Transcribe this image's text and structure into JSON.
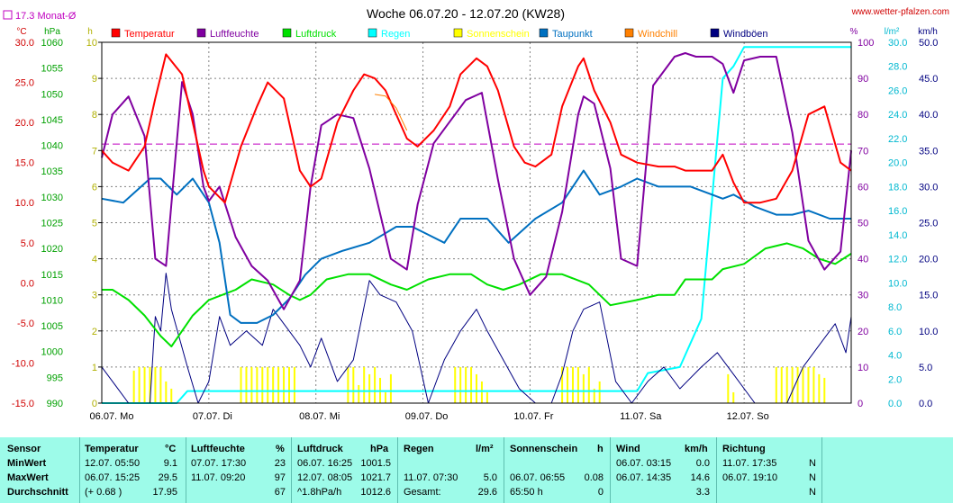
{
  "title": "Woche 06.07.20 - 12.07.20 (KW28)",
  "site": "www.wetter-pfalzen.com",
  "avg_label": "17.3 Monat-Ø",
  "legend": [
    {
      "name": "Temperatur",
      "color": "#ff0000"
    },
    {
      "name": "Luftfeuchte",
      "color": "#8000a0"
    },
    {
      "name": "Luftdruck",
      "color": "#00e000"
    },
    {
      "name": "Regen",
      "color": "#00ffff"
    },
    {
      "name": "Sonnenschein",
      "color": "#ffff00"
    },
    {
      "name": "Taupunkt",
      "color": "#0070c0"
    },
    {
      "name": "Windchill",
      "color": "#ff8000"
    },
    {
      "name": "Windböen",
      "color": "#000080"
    }
  ],
  "chart_data": {
    "type": "line",
    "x_labels": [
      "06.07. Mo",
      "07.07. Di",
      "08.07. Mi",
      "09.07. Do",
      "10.07. Fr",
      "11.07. Sa",
      "12.07. So"
    ],
    "axes": {
      "temp": {
        "unit": "°C",
        "ticks": [
          "30.0",
          "25.0",
          "20.0",
          "15.0",
          "10.0",
          "5.0",
          "0.0",
          "-5.0",
          "-10.0",
          "-15.0"
        ],
        "range": [
          -15,
          30
        ]
      },
      "pressure": {
        "unit": "hPa",
        "ticks": [
          "1060",
          "1055",
          "1050",
          "1045",
          "1040",
          "1035",
          "1030",
          "1025",
          "1020",
          "1015",
          "1010",
          "1005",
          "1000",
          "995",
          "990"
        ],
        "range": [
          990,
          1060
        ]
      },
      "sun": {
        "unit": "h",
        "ticks": [
          "10",
          "9",
          "8",
          "7",
          "6",
          "5",
          "4",
          "3",
          "2",
          "1",
          "0"
        ],
        "range": [
          0,
          10
        ]
      },
      "humidity": {
        "unit": "%",
        "ticks": [
          "100",
          "90",
          "80",
          "70",
          "60",
          "50",
          "40",
          "30",
          "20",
          "10",
          "0"
        ],
        "range": [
          0,
          100
        ]
      },
      "rain": {
        "unit": "l/m²",
        "ticks": [
          "30.0",
          "28.0",
          "26.0",
          "24.0",
          "22.0",
          "20.0",
          "18.0",
          "16.0",
          "14.0",
          "12.0",
          "10.0",
          "8.0",
          "6.0",
          "4.0",
          "2.0",
          "0.0"
        ],
        "range": [
          0,
          30
        ]
      },
      "wind": {
        "unit": "km/h",
        "ticks": [
          "50.0",
          "45.0",
          "40.0",
          "35.0",
          "30.0",
          "25.0",
          "20.0",
          "15.0",
          "10.0",
          "5.0",
          "0.0"
        ],
        "range": [
          0,
          50
        ]
      }
    },
    "monthly_avg_temp": 17.3,
    "series": [
      {
        "name": "Temperatur",
        "axis": "temp",
        "x": [
          0,
          0.1,
          0.25,
          0.4,
          0.5,
          0.6,
          0.75,
          0.85,
          0.95,
          1,
          1.15,
          1.3,
          1.45,
          1.55,
          1.7,
          1.85,
          1.95,
          2.05,
          2.2,
          2.35,
          2.45,
          2.55,
          2.65,
          2.85,
          2.95,
          3.1,
          3.25,
          3.35,
          3.5,
          3.6,
          3.7,
          3.85,
          3.95,
          4.05,
          4.2,
          4.3,
          4.45,
          4.5,
          4.6,
          4.75,
          4.85,
          5,
          5.2,
          5.35,
          5.45,
          5.55,
          5.7,
          5.8,
          5.9,
          6,
          6.15,
          6.3,
          6.45,
          6.6,
          6.75,
          6.9,
          7
        ],
        "y": [
          16.5,
          15,
          14,
          17,
          23,
          28.5,
          26,
          20,
          14,
          12,
          10,
          17,
          22,
          25,
          23,
          14,
          12,
          13,
          20,
          24,
          26,
          25.5,
          24,
          18,
          17,
          19,
          22,
          26,
          28,
          27,
          24,
          17,
          15,
          14.5,
          16,
          22,
          27,
          28,
          24,
          20,
          16,
          15,
          14.5,
          14.5,
          14,
          14,
          14,
          16,
          12.5,
          10,
          10,
          10.5,
          14,
          21,
          22,
          15,
          14
        ]
      },
      {
        "name": "Windchill",
        "axis": "temp",
        "x": [
          2.55,
          2.65,
          2.75,
          2.85
        ],
        "y": [
          23.5,
          23.3,
          21.8,
          19
        ]
      },
      {
        "name": "Luftfeuchte",
        "axis": "humidity",
        "x": [
          0,
          0.1,
          0.25,
          0.4,
          0.5,
          0.6,
          0.75,
          0.85,
          0.95,
          1,
          1.1,
          1.25,
          1.4,
          1.55,
          1.7,
          1.85,
          1.95,
          2.05,
          2.2,
          2.35,
          2.5,
          2.7,
          2.85,
          2.95,
          3.1,
          3.25,
          3.4,
          3.55,
          3.7,
          3.85,
          4,
          4.15,
          4.3,
          4.45,
          4.5,
          4.6,
          4.75,
          4.85,
          5,
          5.15,
          5.35,
          5.45,
          5.55,
          5.7,
          5.8,
          5.9,
          6,
          6.15,
          6.3,
          6.45,
          6.6,
          6.75,
          6.9,
          7
        ],
        "y": [
          68,
          80,
          85,
          74,
          40,
          38,
          89,
          80,
          60,
          56,
          60,
          46,
          38,
          34,
          26,
          34,
          60,
          77,
          80,
          79,
          65,
          40,
          37,
          55,
          72,
          78,
          84,
          86,
          62,
          40,
          30,
          35,
          53,
          80,
          85,
          83,
          65,
          40,
          38,
          88,
          96,
          97,
          96,
          96,
          94,
          86,
          95,
          96,
          96,
          75,
          45,
          37,
          42,
          70
        ]
      },
      {
        "name": "Luftdruck",
        "axis": "pressure",
        "x": [
          0,
          0.1,
          0.25,
          0.4,
          0.55,
          0.65,
          0.75,
          0.85,
          1,
          1.25,
          1.4,
          1.6,
          1.75,
          1.85,
          1.95,
          2.1,
          2.3,
          2.5,
          2.7,
          2.85,
          3.05,
          3.25,
          3.45,
          3.6,
          3.75,
          3.9,
          4.1,
          4.3,
          4.55,
          4.75,
          5,
          5.2,
          5.35,
          5.45,
          5.7,
          5.8,
          6,
          6.2,
          6.4,
          6.55,
          6.7,
          6.85,
          7
        ],
        "y": [
          1012,
          1012,
          1010,
          1007,
          1003,
          1001,
          1004,
          1007,
          1010,
          1012,
          1014,
          1013,
          1011,
          1010,
          1011,
          1014,
          1015,
          1015,
          1013,
          1012,
          1014,
          1015,
          1015,
          1013,
          1012,
          1013,
          1015,
          1015,
          1013,
          1009,
          1010,
          1011,
          1011,
          1014,
          1014,
          1016,
          1017,
          1020,
          1021,
          1020,
          1018,
          1017,
          1019
        ]
      },
      {
        "name": "Taupunkt",
        "axis": "temp",
        "x": [
          0,
          0.2,
          0.45,
          0.55,
          0.7,
          0.85,
          1,
          1.1,
          1.2,
          1.3,
          1.45,
          1.6,
          1.75,
          1.9,
          2.05,
          2.25,
          2.5,
          2.75,
          2.9,
          3.05,
          3.2,
          3.35,
          3.6,
          3.8,
          4.05,
          4.3,
          4.5,
          4.65,
          4.85,
          5,
          5.2,
          5.5,
          5.7,
          5.8,
          5.9,
          6.1,
          6.3,
          6.45,
          6.6,
          6.8,
          7
        ],
        "y": [
          10.5,
          10,
          13,
          13,
          11,
          13,
          10,
          5,
          -4,
          -5,
          -5,
          -4,
          -2,
          1,
          3,
          4,
          5,
          7,
          7,
          6,
          5,
          8,
          8,
          5,
          8,
          10,
          14,
          11,
          12,
          13,
          12,
          12,
          11,
          10.5,
          11,
          9.5,
          8.5,
          8.5,
          9,
          8,
          8
        ]
      },
      {
        "name": "Regen",
        "axis": "rain",
        "x": [
          0,
          0.7,
          0.8,
          5,
          5.1,
          5.4,
          5.6,
          5.8,
          5.9,
          6,
          7
        ],
        "y": [
          0,
          0,
          1,
          1,
          2.5,
          3,
          7,
          27,
          28,
          29.6,
          29.6
        ]
      },
      {
        "name": "Windböen",
        "axis": "wind",
        "x": [
          0,
          0.1,
          0.25,
          0.45,
          0.5,
          0.55,
          0.6,
          0.65,
          0.8,
          0.9,
          1,
          1.1,
          1.2,
          1.35,
          1.5,
          1.6,
          1.7,
          1.85,
          1.95,
          2.05,
          2.2,
          2.35,
          2.5,
          2.6,
          2.75,
          2.9,
          3.05,
          3.2,
          3.35,
          3.5,
          3.6,
          3.75,
          3.9,
          4.05,
          4.2,
          4.3,
          4.4,
          4.5,
          4.65,
          4.8,
          4.95,
          5.1,
          5.25,
          5.4,
          5.6,
          5.75,
          5.9,
          6.1,
          6.2,
          6.4,
          6.55,
          6.7,
          6.85,
          6.95,
          7
        ],
        "y": [
          5,
          3,
          0,
          0,
          12,
          10,
          18,
          13,
          5,
          0,
          3,
          12,
          8,
          10,
          8,
          13,
          11,
          8,
          5,
          9,
          3,
          6,
          17,
          15,
          14,
          10,
          0,
          6,
          10,
          13,
          10,
          6,
          2,
          0,
          0,
          4,
          10,
          13,
          14,
          3,
          0,
          3,
          5,
          2,
          5,
          7,
          4,
          0,
          0,
          0,
          5,
          8,
          11,
          7,
          12
        ]
      },
      {
        "name": "Sonnenschein",
        "axis": "sun",
        "type": "bar",
        "x": [
          0.3,
          0.35,
          0.4,
          0.45,
          0.5,
          0.55,
          0.6,
          0.65,
          1.3,
          1.35,
          1.4,
          1.45,
          1.5,
          1.55,
          1.6,
          1.65,
          1.7,
          1.75,
          1.8,
          2.3,
          2.35,
          2.4,
          2.45,
          2.5,
          2.55,
          2.6,
          2.65,
          2.7,
          3.3,
          3.35,
          3.4,
          3.45,
          3.5,
          3.55,
          3.6,
          4.3,
          4.35,
          4.4,
          4.45,
          4.5,
          4.55,
          4.6,
          4.65,
          5.85,
          5.9,
          6.3,
          6.35,
          6.4,
          6.45,
          6.5,
          6.55,
          6.6,
          6.65,
          6.7,
          6.75
        ],
        "y": [
          0.9,
          1,
          1,
          1,
          1,
          1,
          0.6,
          0.4,
          1,
          1,
          1,
          1,
          1,
          1,
          1,
          1,
          1,
          1,
          1,
          1,
          1,
          0.5,
          1,
          0.8,
          1,
          0.7,
          0.3,
          0.8,
          1,
          1,
          1,
          1,
          0.8,
          0.6,
          0.3,
          1,
          1,
          1,
          1,
          0.8,
          1,
          0.4,
          0.6,
          0.8,
          0.3,
          1,
          1,
          1,
          1,
          1,
          1,
          1,
          1,
          0.8,
          0.7
        ]
      }
    ]
  },
  "table": {
    "header": {
      "sensor": "Sensor",
      "temp": "Temperatur",
      "temp_unit": "°C",
      "hum": "Luftfeuchte",
      "hum_unit": "%",
      "press": "Luftdruck",
      "press_unit": "hPa",
      "rain": "Regen",
      "rain_unit": "l/m²",
      "sun": "Sonnenschein",
      "sun_unit": "h",
      "wind": "Wind",
      "wind_unit": "km/h",
      "dir": "Richtung"
    },
    "rows": [
      {
        "label": "MinWert",
        "temp_t": "12.07.  05:50",
        "temp_v": "9.1",
        "hum_t": "07.07.  17:30",
        "hum_v": "23",
        "press_t": "06.07.  16:25",
        "press_v": "1001.5",
        "rain_t": "",
        "rain_v": "",
        "sun_t": "",
        "sun_v": "",
        "wind_t": "06.07.  03:15",
        "wind_v": "0.0",
        "dir_t": "11.07.  17:35",
        "dir_v": "N"
      },
      {
        "label": "MaxWert",
        "temp_t": "06.07.  15:25",
        "temp_v": "29.5",
        "hum_t": "11.07.  09:20",
        "hum_v": "97",
        "press_t": "12.07.  08:05",
        "press_v": "1021.7",
        "rain_t": "11.07.  07:30",
        "rain_v": "5.0",
        "sun_t": "06.07.  06:55",
        "sun_v": "0.08",
        "wind_t": "06.07.  14:35",
        "wind_v": "14.6",
        "dir_t": "06.07.  19:10",
        "dir_v": "N"
      },
      {
        "label": "Durchschnitt",
        "temp_t": "(+ 0.68 )",
        "temp_v": "17.95",
        "hum_t": "",
        "hum_v": "67",
        "press_t": "^1.8hPa/h",
        "press_v": "1012.6",
        "rain_t": "Gesamt:",
        "rain_v": "29.6",
        "sun_t": "65:50 h",
        "sun_v": "0",
        "wind_t": "",
        "wind_v": "3.3",
        "dir_t": "",
        "dir_v": "N"
      }
    ]
  }
}
